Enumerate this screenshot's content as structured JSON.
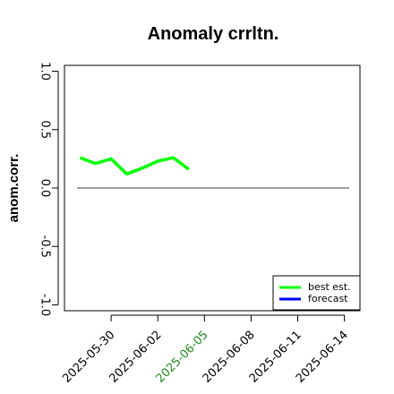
{
  "chart_data": {
    "type": "line",
    "title": "Anomaly crrltn.",
    "ylabel": "anom.corr.",
    "xlabel": "",
    "ylim": [
      -1.0,
      1.0
    ],
    "yticks": [
      "-1.0",
      "-0.5",
      "0.0",
      "0.5",
      "1.0"
    ],
    "xlim": [
      "2025-05-27",
      "2025-06-15"
    ],
    "xticks": [
      "2025-05-30",
      "2025-06-02",
      "2025-06-05",
      "2025-06-08",
      "2025-06-11",
      "2025-06-14"
    ],
    "highlight_tick": "2025-06-05",
    "highlight_color": "#228b22",
    "reference_line": 0.0,
    "series": [
      {
        "name": "best est.",
        "color": "#00ff00",
        "x": [
          "2025-05-28",
          "2025-05-29",
          "2025-05-30",
          "2025-05-31",
          "2025-06-01",
          "2025-06-02",
          "2025-06-03",
          "2025-06-04"
        ],
        "values": [
          0.26,
          0.21,
          0.25,
          0.12,
          0.17,
          0.23,
          0.26,
          0.16
        ]
      },
      {
        "name": "forecast",
        "color": "#0000ff",
        "x": [],
        "values": []
      }
    ],
    "legend_position": "bottom-right"
  }
}
